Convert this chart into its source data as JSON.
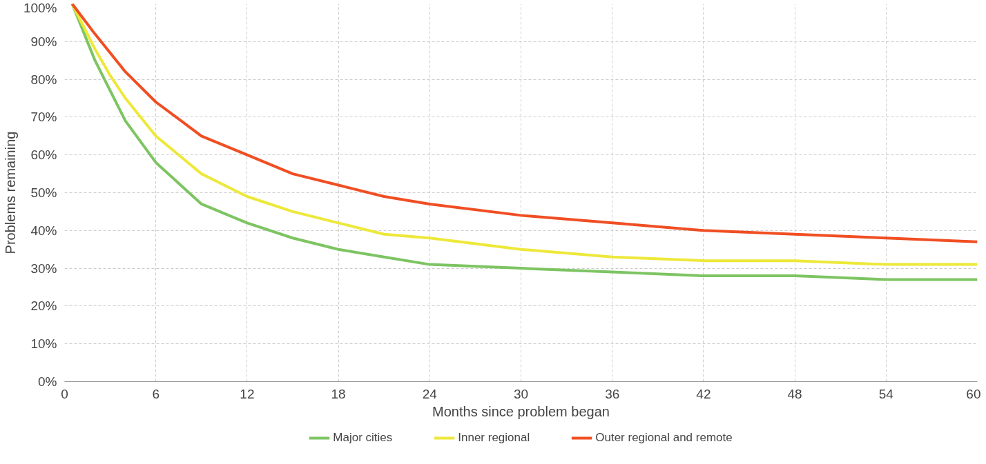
{
  "chart_data": {
    "type": "line",
    "xlabel": "Months since problem began",
    "ylabel": "Problems remaining",
    "xlim": [
      0,
      60
    ],
    "xticks": [
      0,
      6,
      12,
      18,
      24,
      30,
      36,
      42,
      48,
      54,
      60
    ],
    "ylim": [
      0,
      100
    ],
    "yticks": [
      {
        "value": 0,
        "label": "0%"
      },
      {
        "value": 10,
        "label": "10%"
      },
      {
        "value": 20,
        "label": "20%"
      },
      {
        "value": 30,
        "label": "30%"
      },
      {
        "value": 40,
        "label": "40%"
      },
      {
        "value": 50,
        "label": "50%"
      },
      {
        "value": 60,
        "label": "60%"
      },
      {
        "value": 70,
        "label": "70%"
      },
      {
        "value": 80,
        "label": "80%"
      },
      {
        "value": 90,
        "label": "90%"
      },
      {
        "value": 100,
        "label": "100%"
      }
    ],
    "grid": true,
    "legend": "bottom",
    "marker": "none",
    "line_style": "solid",
    "x": [
      0.5,
      2,
      3,
      4,
      6,
      9,
      12,
      15,
      18,
      21,
      24,
      30,
      36,
      42,
      48,
      54,
      60
    ],
    "series": [
      {
        "name": "Major cities",
        "color": "#7dc462",
        "values": [
          100,
          85,
          77,
          69,
          58,
          47,
          42,
          38,
          35,
          33,
          31,
          30,
          29,
          28,
          28,
          27,
          27
        ]
      },
      {
        "name": "Inner regional",
        "color": "#ede83a",
        "values": [
          100,
          88,
          81,
          75,
          65,
          55,
          49,
          45,
          42,
          39,
          38,
          35,
          33,
          32,
          32,
          31,
          31
        ]
      },
      {
        "name": "Outer regional and remote",
        "color": "#f04e23",
        "values": [
          100,
          92,
          87,
          82,
          74,
          65,
          60,
          55,
          52,
          49,
          47,
          44,
          42,
          40,
          39,
          38,
          37
        ]
      }
    ]
  }
}
